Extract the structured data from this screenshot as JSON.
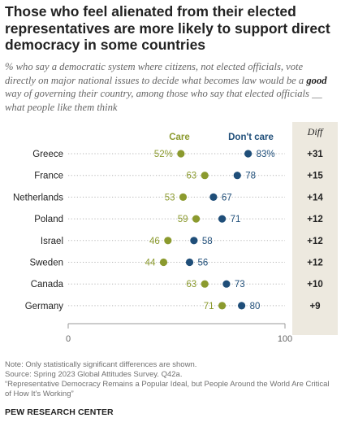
{
  "header": {
    "title": "Those who feel alienated from their elected representatives are more likely to support direct democracy in some countries",
    "subtitle_before": "% who say a democratic system where citizens, not elected officials, vote directly on major national issues to decide what becomes law would be a ",
    "subtitle_bold": "good",
    "subtitle_after": " way of governing their country, among those who say that elected officials __ what people like them think"
  },
  "footer": {
    "note1": "Note: Only statistically significant differences are shown.",
    "note2": "Source: Spring 2023 Global Attitudes Survey. Q42a.",
    "note3": "“Representative Democracy Remains a Popular Ideal, but People Around the World Are Critical of How It’s Working”",
    "brand": "PEW RESEARCH CENTER"
  },
  "colors": {
    "care": "#8b9a2e",
    "dont_care": "#1f4e79",
    "diff_background": "#ede9df",
    "dotted_line": "#b5b5b5"
  },
  "chart_data": {
    "type": "scatter",
    "variant": "dot-plot",
    "categories": [
      "Greece",
      "France",
      "Netherlands",
      "Poland",
      "Israel",
      "Sweden",
      "Canada",
      "Germany"
    ],
    "series": [
      {
        "name": "Care",
        "values": [
          52,
          63,
          53,
          59,
          46,
          44,
          63,
          71
        ],
        "value_labels": [
          "52%",
          "63",
          "53",
          "59",
          "46",
          "44",
          "63",
          "71"
        ]
      },
      {
        "name": "Don't care",
        "values": [
          83,
          78,
          67,
          71,
          58,
          56,
          73,
          80
        ],
        "value_labels": [
          "83%",
          "78",
          "67",
          "71",
          "58",
          "56",
          "73",
          "80"
        ]
      }
    ],
    "diff_header": "Diff",
    "diff": [
      "+31",
      "+15",
      "+14",
      "+12",
      "+12",
      "+12",
      "+10",
      "+9"
    ],
    "xlim": [
      0,
      100
    ],
    "x_ticks": [
      "0",
      "100"
    ],
    "grid": false,
    "legend_placement": "top"
  }
}
